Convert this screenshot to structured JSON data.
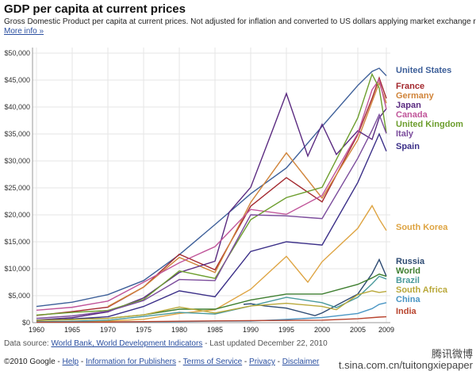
{
  "header": {
    "title": "GDP per capita at current prices",
    "subtitle": "Gross Domestic Product per capita at current prices. Not adjusted for inflation and converted to US dollars applying market exchange rates.",
    "more_link": "More info »"
  },
  "footer": {
    "source_label": "Data source:",
    "source_link": "World Bank, World Development Indicators",
    "updated": "- Last updated December 22, 2010",
    "copyright": "©2010 Google -",
    "links": [
      "Help",
      "Information for Publishers",
      "Terms of Service",
      "Privacy",
      "Disclaimer"
    ]
  },
  "watermark": {
    "line1": "腾讯微博",
    "line2": "t.sina.com.cn/tuitongxiepaper"
  },
  "chart_data": {
    "type": "line",
    "title": "GDP per capita at current prices",
    "xlim": [
      1960,
      2009
    ],
    "ylim": [
      0,
      50000
    ],
    "grid": true,
    "legend": "right (labels at line ends)",
    "x_ticks": [
      "1960",
      "1965",
      "1970",
      "1975",
      "1980",
      "1985",
      "1990",
      "1995",
      "2000",
      "2005",
      "2009"
    ],
    "y_ticks": [
      "$0",
      "$5,000",
      "$10,000",
      "$15,000",
      "$20,000",
      "$25,000",
      "$30,000",
      "$35,000",
      "$40,000",
      "$45,000",
      "$50,000"
    ],
    "series": [
      {
        "name": "United States",
        "color": "#3d5f99",
        "points": [
          [
            1960,
            3000
          ],
          [
            1965,
            3800
          ],
          [
            1970,
            5200
          ],
          [
            1975,
            7800
          ],
          [
            1980,
            12600
          ],
          [
            1985,
            18200
          ],
          [
            1990,
            23900
          ],
          [
            1995,
            28700
          ],
          [
            2000,
            36400
          ],
          [
            2005,
            44000
          ],
          [
            2007,
            46600
          ],
          [
            2008,
            47200
          ],
          [
            2009,
            45800
          ]
        ]
      },
      {
        "name": "France",
        "color": "#a3282e",
        "points": [
          [
            1960,
            1340
          ],
          [
            1965,
            2050
          ],
          [
            1970,
            2870
          ],
          [
            1975,
            6600
          ],
          [
            1980,
            12700
          ],
          [
            1985,
            9800
          ],
          [
            1990,
            21600
          ],
          [
            1995,
            26900
          ],
          [
            2000,
            22400
          ],
          [
            2005,
            34900
          ],
          [
            2007,
            41600
          ],
          [
            2008,
            45400
          ],
          [
            2009,
            41600
          ]
        ]
      },
      {
        "name": "Germany",
        "color": "#d0843a",
        "points": [
          [
            1970,
            3000
          ],
          [
            1975,
            6600
          ],
          [
            1980,
            12100
          ],
          [
            1985,
            9300
          ],
          [
            1990,
            22300
          ],
          [
            1995,
            31500
          ],
          [
            2000,
            23100
          ],
          [
            2005,
            33900
          ],
          [
            2008,
            44500
          ],
          [
            2009,
            40700
          ]
        ]
      },
      {
        "name": "Japan",
        "color": "#5a2a80",
        "points": [
          [
            1960,
            480
          ],
          [
            1965,
            920
          ],
          [
            1970,
            2000
          ],
          [
            1975,
            4600
          ],
          [
            1980,
            9300
          ],
          [
            1985,
            11400
          ],
          [
            1987,
            20500
          ],
          [
            1990,
            25100
          ],
          [
            1993,
            35500
          ],
          [
            1995,
            42500
          ],
          [
            1998,
            30900
          ],
          [
            2000,
            36800
          ],
          [
            2002,
            31200
          ],
          [
            2005,
            35600
          ],
          [
            2007,
            34000
          ],
          [
            2008,
            38000
          ],
          [
            2009,
            39700
          ]
        ]
      },
      {
        "name": "Canada",
        "color": "#c0559a",
        "points": [
          [
            1960,
            2300
          ],
          [
            1965,
            2850
          ],
          [
            1970,
            4000
          ],
          [
            1975,
            7500
          ],
          [
            1980,
            11100
          ],
          [
            1985,
            14100
          ],
          [
            1990,
            21000
          ],
          [
            1995,
            20100
          ],
          [
            2000,
            23600
          ],
          [
            2005,
            35100
          ],
          [
            2007,
            43200
          ],
          [
            2008,
            45100
          ],
          [
            2009,
            39600
          ]
        ]
      },
      {
        "name": "United Kingdom",
        "color": "#6d9e2e",
        "points": [
          [
            1960,
            1400
          ],
          [
            1965,
            1900
          ],
          [
            1970,
            2250
          ],
          [
            1975,
            4300
          ],
          [
            1980,
            9600
          ],
          [
            1985,
            8200
          ],
          [
            1990,
            19100
          ],
          [
            1995,
            23200
          ],
          [
            2000,
            25100
          ],
          [
            2005,
            38000
          ],
          [
            2007,
            46100
          ],
          [
            2008,
            43500
          ],
          [
            2009,
            35200
          ]
        ]
      },
      {
        "name": "Italy",
        "color": "#7b4c9c",
        "points": [
          [
            1960,
            800
          ],
          [
            1965,
            1250
          ],
          [
            1970,
            2100
          ],
          [
            1975,
            4100
          ],
          [
            1980,
            8000
          ],
          [
            1985,
            7800
          ],
          [
            1990,
            20000
          ],
          [
            1995,
            19800
          ],
          [
            2000,
            19300
          ],
          [
            2005,
            30500
          ],
          [
            2007,
            35700
          ],
          [
            2008,
            38600
          ],
          [
            2009,
            35100
          ]
        ]
      },
      {
        "name": "Spain",
        "color": "#3b2f88",
        "points": [
          [
            1960,
            400
          ],
          [
            1965,
            680
          ],
          [
            1970,
            1100
          ],
          [
            1975,
            3000
          ],
          [
            1980,
            5900
          ],
          [
            1985,
            4800
          ],
          [
            1990,
            13200
          ],
          [
            1995,
            15000
          ],
          [
            2000,
            14400
          ],
          [
            2005,
            26000
          ],
          [
            2007,
            32000
          ],
          [
            2008,
            35000
          ],
          [
            2009,
            31800
          ]
        ]
      },
      {
        "name": "South Korea",
        "color": "#dea442",
        "points": [
          [
            1960,
            155
          ],
          [
            1965,
            105
          ],
          [
            1970,
            280
          ],
          [
            1975,
            620
          ],
          [
            1980,
            1700
          ],
          [
            1985,
            2400
          ],
          [
            1990,
            6200
          ],
          [
            1995,
            12300
          ],
          [
            1998,
            7500
          ],
          [
            2000,
            11300
          ],
          [
            2005,
            17500
          ],
          [
            2007,
            21700
          ],
          [
            2008,
            19200
          ],
          [
            2009,
            17100
          ]
        ]
      },
      {
        "name": "Russia",
        "color": "#2d4a72",
        "points": [
          [
            1989,
            3400
          ],
          [
            1990,
            3500
          ],
          [
            1992,
            3100
          ],
          [
            1995,
            2700
          ],
          [
            1999,
            1300
          ],
          [
            2000,
            1800
          ],
          [
            2005,
            5300
          ],
          [
            2007,
            9100
          ],
          [
            2008,
            11700
          ],
          [
            2009,
            8600
          ]
        ]
      },
      {
        "name": "World",
        "color": "#3f7f30",
        "points": [
          [
            1960,
            450
          ],
          [
            1965,
            600
          ],
          [
            1970,
            800
          ],
          [
            1975,
            1450
          ],
          [
            1980,
            2500
          ],
          [
            1985,
            2500
          ],
          [
            1990,
            4200
          ],
          [
            1995,
            5300
          ],
          [
            2000,
            5300
          ],
          [
            2005,
            7100
          ],
          [
            2007,
            8300
          ],
          [
            2008,
            9000
          ],
          [
            2009,
            8600
          ]
        ]
      },
      {
        "name": "Brazil",
        "color": "#4a9a9c",
        "points": [
          [
            1960,
            200
          ],
          [
            1965,
            260
          ],
          [
            1970,
            450
          ],
          [
            1975,
            1150
          ],
          [
            1980,
            1900
          ],
          [
            1985,
            1600
          ],
          [
            1990,
            3100
          ],
          [
            1995,
            4700
          ],
          [
            2000,
            3700
          ],
          [
            2002,
            2800
          ],
          [
            2005,
            4700
          ],
          [
            2007,
            7200
          ],
          [
            2008,
            8600
          ],
          [
            2009,
            8100
          ]
        ]
      },
      {
        "name": "South Africa",
        "color": "#b9a83a",
        "points": [
          [
            1960,
            420
          ],
          [
            1965,
            560
          ],
          [
            1970,
            800
          ],
          [
            1975,
            1450
          ],
          [
            1980,
            2900
          ],
          [
            1985,
            1800
          ],
          [
            1990,
            3100
          ],
          [
            1995,
            3600
          ],
          [
            2000,
            3000
          ],
          [
            2002,
            2400
          ],
          [
            2005,
            5200
          ],
          [
            2007,
            5900
          ],
          [
            2008,
            5600
          ],
          [
            2009,
            5800
          ]
        ]
      },
      {
        "name": "China",
        "color": "#4a96c4",
        "points": [
          [
            1960,
            90
          ],
          [
            1970,
            110
          ],
          [
            1980,
            190
          ],
          [
            1985,
            290
          ],
          [
            1990,
            310
          ],
          [
            1995,
            600
          ],
          [
            2000,
            950
          ],
          [
            2005,
            1700
          ],
          [
            2007,
            2600
          ],
          [
            2008,
            3400
          ],
          [
            2009,
            3700
          ]
        ]
      },
      {
        "name": "India",
        "color": "#b8442e",
        "points": [
          [
            1960,
            80
          ],
          [
            1970,
            110
          ],
          [
            1980,
            270
          ],
          [
            1990,
            380
          ],
          [
            2000,
            450
          ],
          [
            2005,
            730
          ],
          [
            2008,
            1030
          ],
          [
            2009,
            1100
          ]
        ]
      }
    ]
  }
}
